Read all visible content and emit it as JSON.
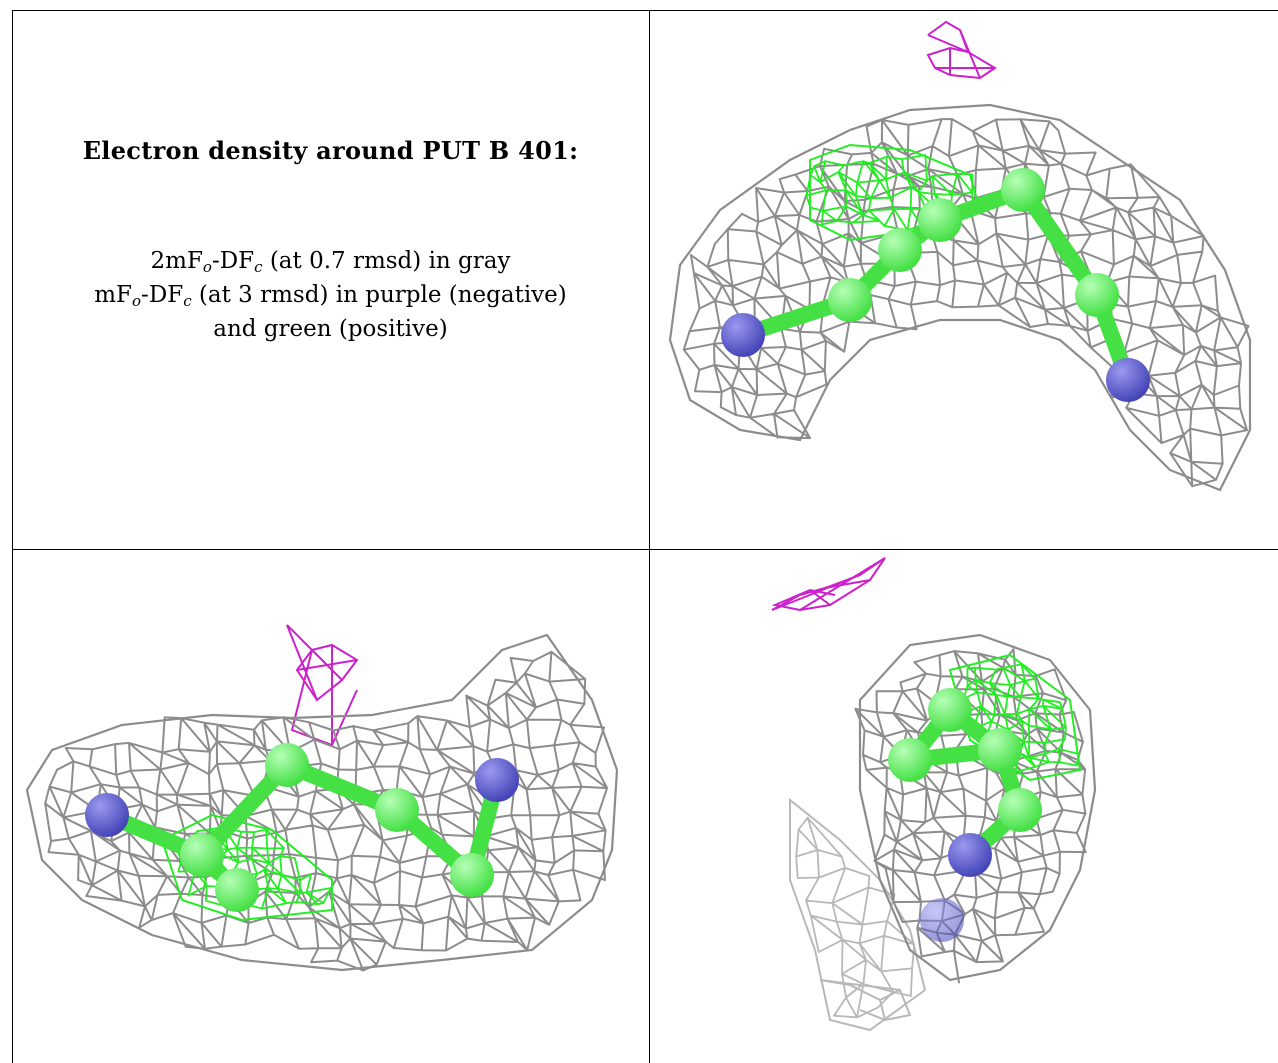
{
  "caption": {
    "title": "Electron density around PUT B 401:",
    "line1_pre": "2mF",
    "line1_sub1": "o",
    "line1_mid": "-DF",
    "line1_sub2": "c",
    "line1_post": " (at 0.7 rmsd) in gray",
    "line2_pre": "mF",
    "line2_sub1": "o",
    "line2_mid": "-DF",
    "line2_sub2": "c",
    "line2_post": " (at 3 rmsd) in purple (negative)",
    "line3": "and green (positive)"
  },
  "colors": {
    "density_2fofc": "#8c8c8c",
    "density_negative": "#cc22cc",
    "density_positive": "#22ee22",
    "carbon": "#44e044",
    "nitrogen": "#4545b8",
    "border": "#000000"
  },
  "panels": [
    {
      "name": "view-1",
      "position": "top-right"
    },
    {
      "name": "view-2",
      "position": "bottom-left"
    },
    {
      "name": "view-3",
      "position": "bottom-right"
    }
  ]
}
